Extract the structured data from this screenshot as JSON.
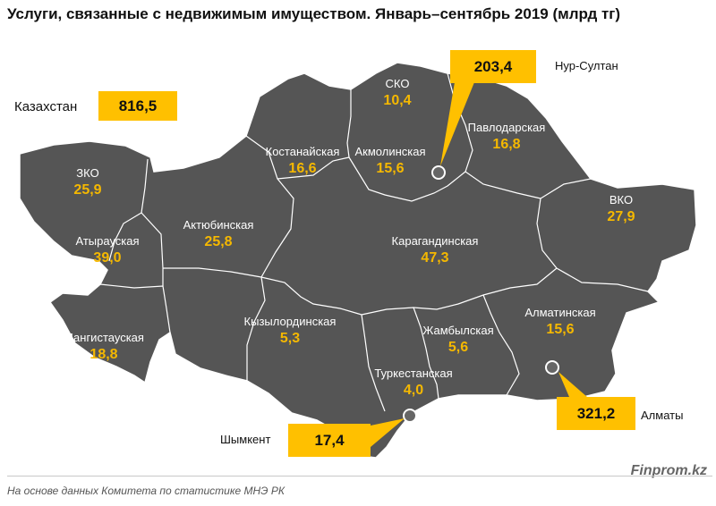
{
  "title": "Услуги, связанные с недвижимым имуществом. Январь–сентябрь 2019 (млрд тг)",
  "colors": {
    "land": "#555555",
    "border": "#ffffff",
    "value": "#f5b800",
    "box": "#ffc000"
  },
  "country": {
    "name": "Казахстан",
    "value": "816,5"
  },
  "regions": [
    {
      "id": "sko",
      "name": "СКО",
      "value": "10,4"
    },
    {
      "id": "kostanay",
      "name": "Костанайская",
      "value": "16,6"
    },
    {
      "id": "akmola",
      "name": "Акмолинская",
      "value": "15,6"
    },
    {
      "id": "pavlodar",
      "name": "Павлодарская",
      "value": "16,8"
    },
    {
      "id": "zko",
      "name": "ЗКО",
      "value": "25,9"
    },
    {
      "id": "aktobe",
      "name": "Актюбинская",
      "value": "25,8"
    },
    {
      "id": "atyrau",
      "name": "Атырауская",
      "value": "39,0"
    },
    {
      "id": "vko",
      "name": "ВКО",
      "value": "27,9"
    },
    {
      "id": "karaganda",
      "name": "Карагандинская",
      "value": "47,3"
    },
    {
      "id": "mangystau",
      "name": "Мангистауская",
      "value": "18,8"
    },
    {
      "id": "kyzylorda",
      "name": "Кызылординская",
      "value": "5,3"
    },
    {
      "id": "zhambyl",
      "name": "Жамбылская",
      "value": "5,6"
    },
    {
      "id": "almaty-obl",
      "name": "Алматинская",
      "value": "15,6"
    },
    {
      "id": "turkestan",
      "name": "Туркестанская",
      "value": "4,0"
    }
  ],
  "cities": [
    {
      "id": "nur-sultan",
      "name": "Нур-Султан",
      "value": "203,4"
    },
    {
      "id": "almaty",
      "name": "Алматы",
      "value": "321,2"
    },
    {
      "id": "shymkent",
      "name": "Шымкент",
      "value": "17,4"
    }
  ],
  "source": "На основе данных  Комитета по статистике МНЭ РК",
  "brand": "Finprom.kz"
}
